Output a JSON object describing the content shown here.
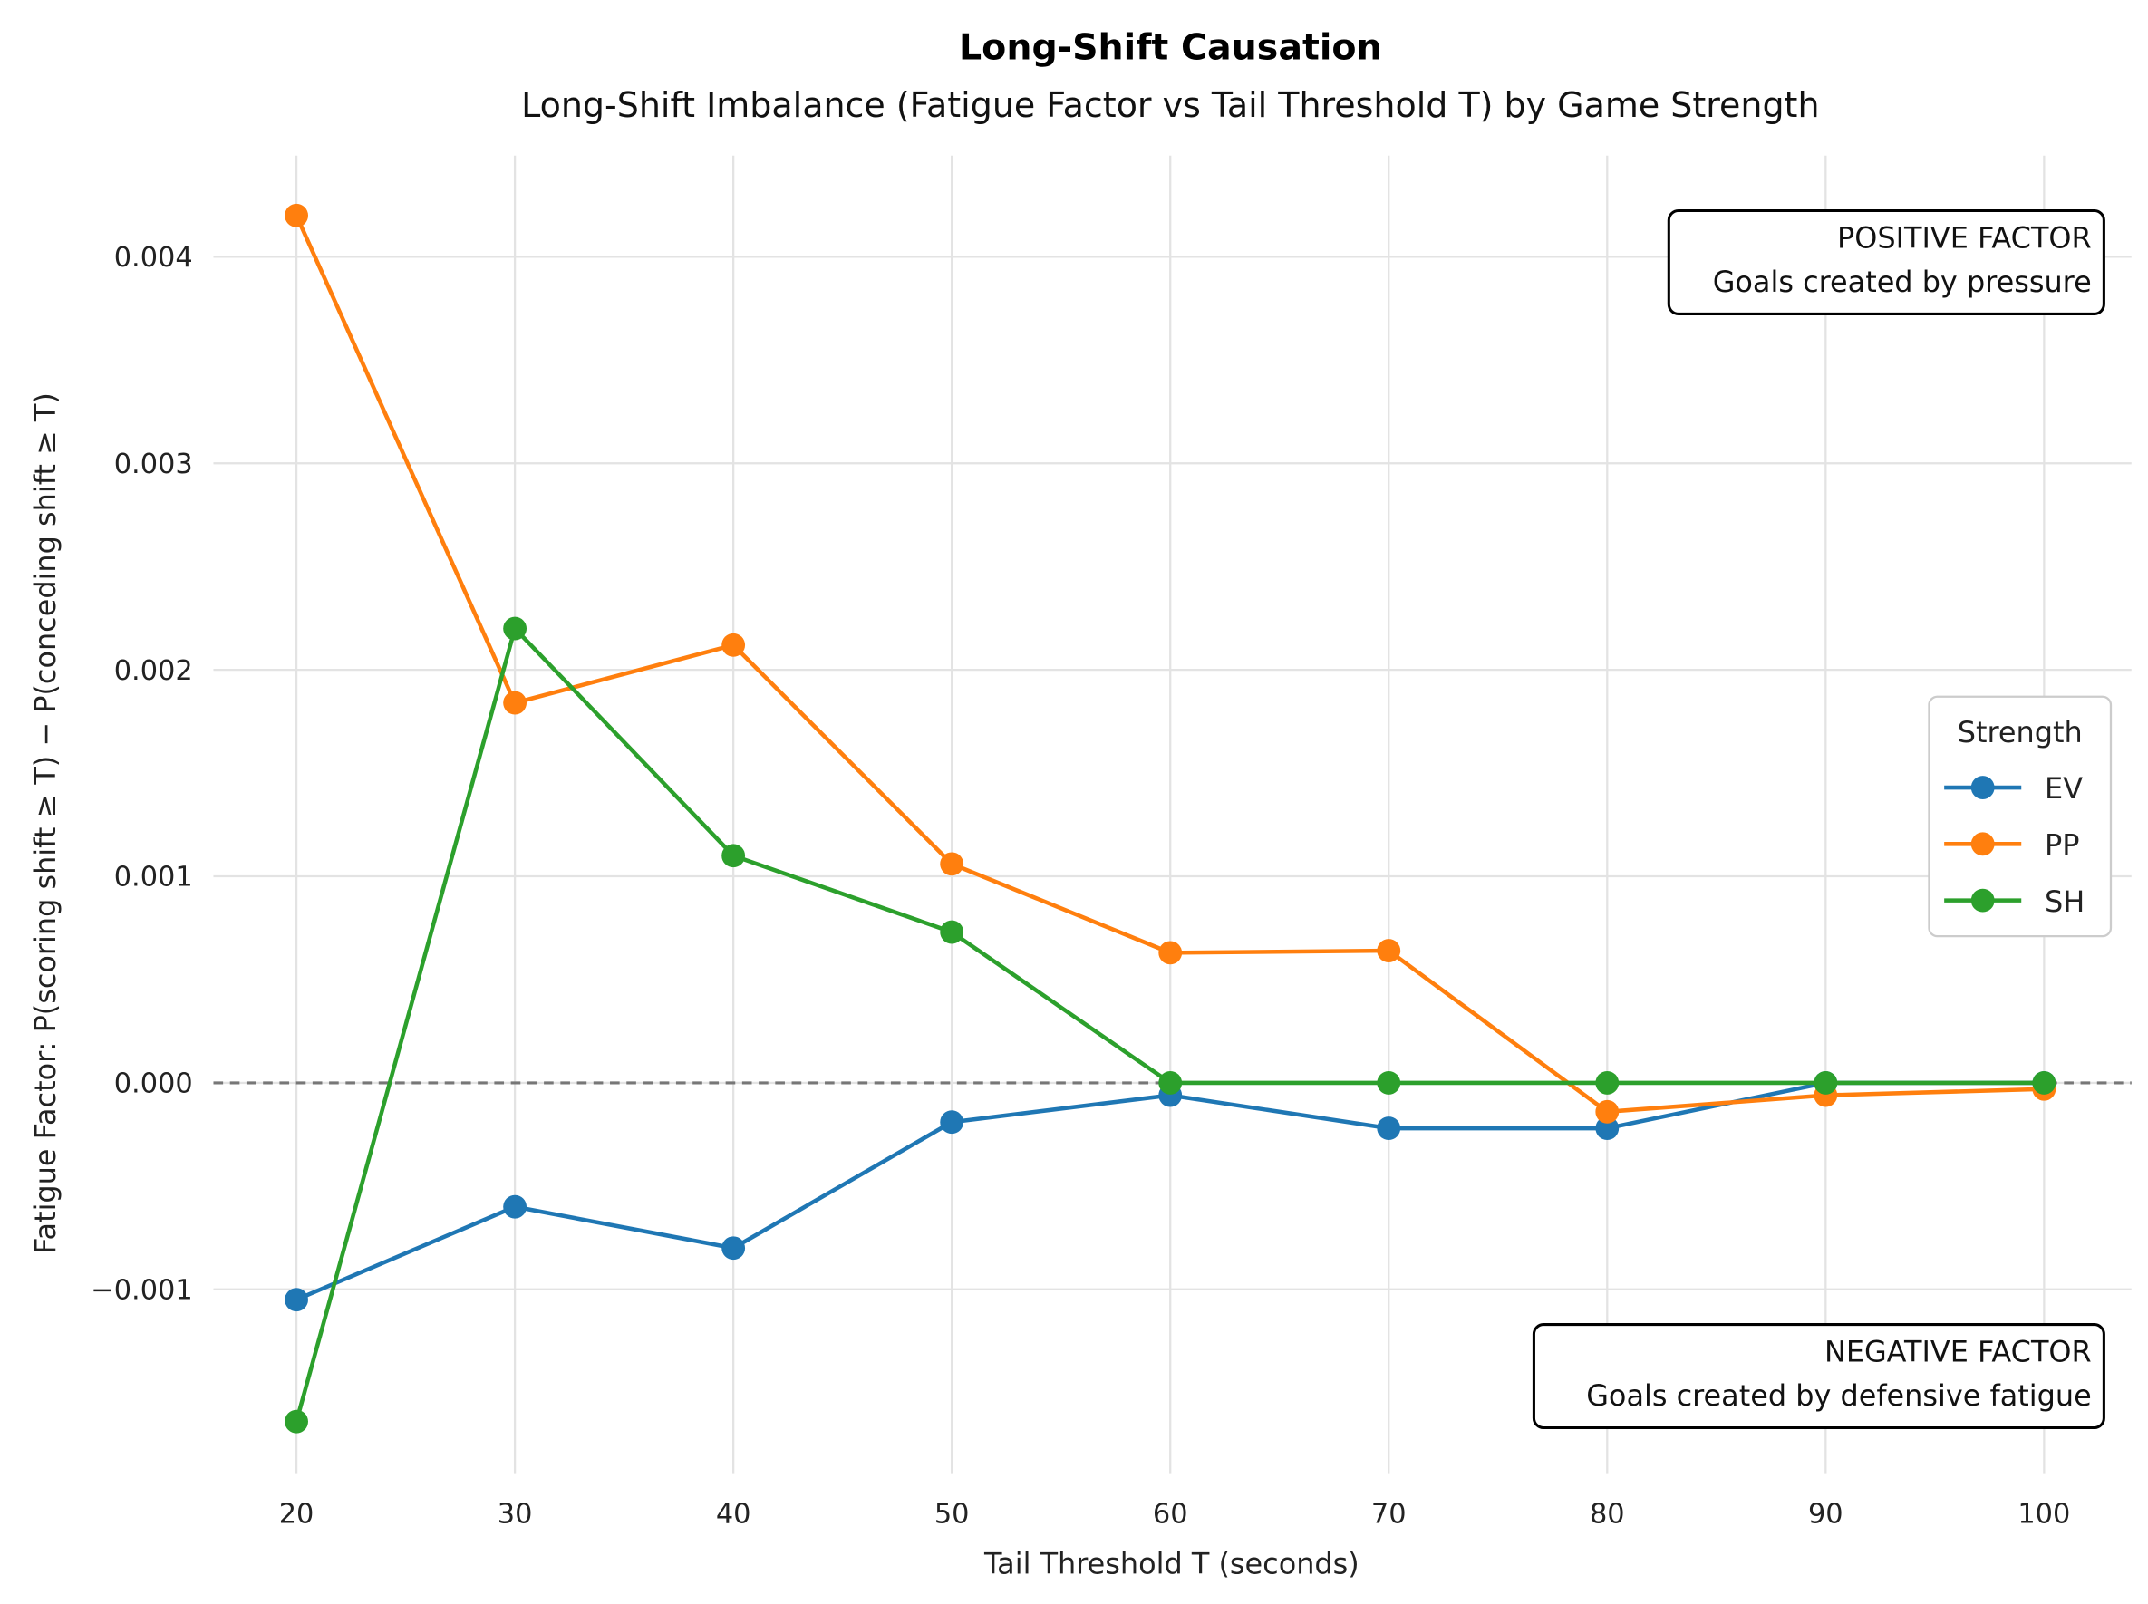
{
  "chart_data": {
    "type": "line",
    "title": "Long-Shift Causation",
    "subtitle": "Long-Shift Imbalance (Fatigue Factor vs Tail Threshold T) by Game Strength",
    "xlabel": "Tail Threshold T (seconds)",
    "ylabel": "Fatigue Factor: P(scoring shift ≥ T) − P(conceding shift ≥ T)",
    "x": [
      20,
      30,
      40,
      50,
      60,
      70,
      80,
      90,
      100
    ],
    "xticks": [
      "20",
      "30",
      "40",
      "50",
      "60",
      "70",
      "80",
      "90",
      "100"
    ],
    "yticks": [
      -0.001,
      0.0,
      0.001,
      0.002,
      0.003,
      0.004
    ],
    "ytick_labels": [
      "−0.001",
      "0.000",
      "0.001",
      "0.002",
      "0.003",
      "0.004"
    ],
    "xlim": [
      16.2,
      104
    ],
    "ylim": [
      -0.00189,
      0.00449
    ],
    "grid": true,
    "reference_line": 0,
    "legend": {
      "title": "Strength",
      "placement": "center-right"
    },
    "series": [
      {
        "name": "EV",
        "color": "#1f77b4",
        "values": [
          -0.00105,
          -0.0006,
          -0.0008,
          -0.00019,
          -6e-05,
          -0.00022,
          -0.00022,
          0.0,
          0.0
        ]
      },
      {
        "name": "PP",
        "color": "#ff7f0e",
        "values": [
          0.0042,
          0.00184,
          0.00212,
          0.00106,
          0.00063,
          0.00064,
          -0.00014,
          -6e-05,
          -3e-05
        ]
      },
      {
        "name": "SH",
        "color": "#2ca02c",
        "values": [
          -0.00164,
          0.0022,
          0.0011,
          0.00073,
          0.0,
          0.0,
          0.0,
          0.0,
          0.0
        ]
      }
    ],
    "annotations": {
      "positive_title": "POSITIVE FACTOR",
      "positive_text": "Goals created by pressure",
      "negative_title": "NEGATIVE FACTOR",
      "negative_text": "Goals created by defensive fatigue"
    }
  }
}
